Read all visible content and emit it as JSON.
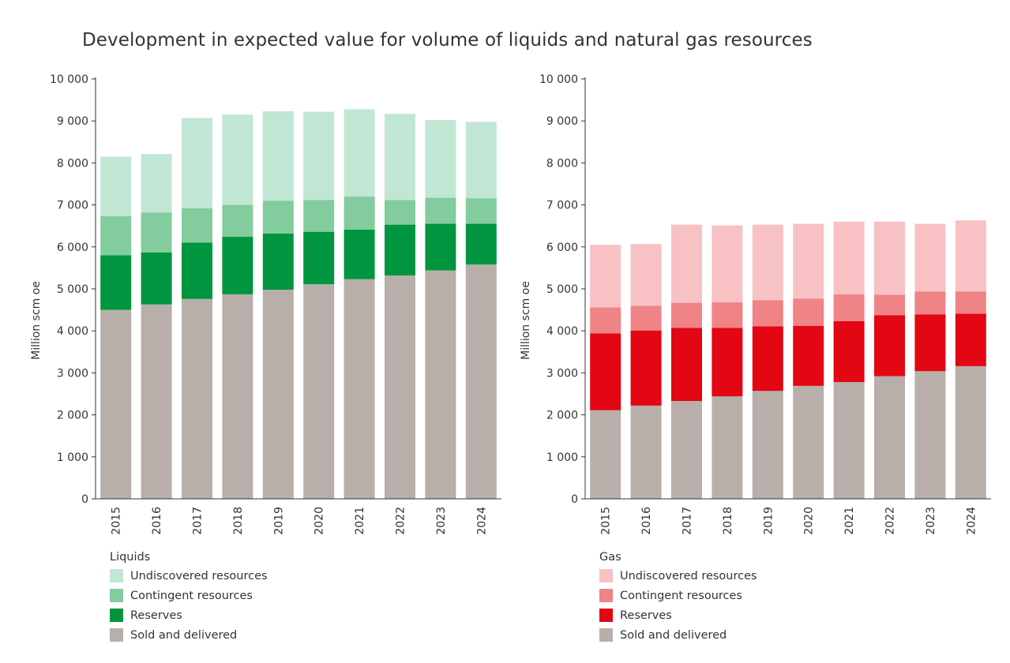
{
  "title": "Development in expected value for volume of liquids and natural gas resources",
  "chart_data": [
    {
      "type": "bar",
      "stacked": true,
      "name": "Liquids",
      "categories": [
        "2015",
        "2016",
        "2017",
        "2018",
        "2019",
        "2020",
        "2021",
        "2022",
        "2023",
        "2024"
      ],
      "ylabel": "Million scm oe",
      "xlabel": "",
      "ylim": [
        0,
        10000
      ],
      "yticks": [
        0,
        1000,
        2000,
        3000,
        4000,
        5000,
        6000,
        7000,
        8000,
        9000,
        10000
      ],
      "ytick_labels": [
        "0",
        "1 000",
        "2 000",
        "3 000",
        "4 000",
        "5 000",
        "6 000",
        "7 000",
        "8 000",
        "9 000",
        "10 000"
      ],
      "grid": false,
      "legend_title": "Liquids",
      "legend_position": "bottom-left",
      "series": [
        {
          "name": "Sold and delivered",
          "color": "#b8afaa",
          "values": [
            4500,
            4630,
            4760,
            4870,
            4980,
            5110,
            5230,
            5320,
            5440,
            5580
          ]
        },
        {
          "name": "Reserves",
          "color": "#00953e",
          "values": [
            1300,
            1240,
            1340,
            1370,
            1340,
            1250,
            1180,
            1210,
            1110,
            970
          ]
        },
        {
          "name": "Contingent resources",
          "color": "#82cc9e",
          "values": [
            930,
            950,
            820,
            760,
            780,
            760,
            790,
            590,
            620,
            610
          ]
        },
        {
          "name": "Undiscovered resources",
          "color": "#c2e6d4",
          "values": [
            1420,
            1390,
            2150,
            2150,
            2130,
            2100,
            2080,
            2050,
            1850,
            1820
          ]
        }
      ]
    },
    {
      "type": "bar",
      "stacked": true,
      "name": "Gas",
      "categories": [
        "2015",
        "2016",
        "2017",
        "2018",
        "2019",
        "2020",
        "2021",
        "2022",
        "2023",
        "2024"
      ],
      "ylabel": "Million scm oe",
      "xlabel": "",
      "ylim": [
        0,
        10000
      ],
      "yticks": [
        0,
        1000,
        2000,
        3000,
        4000,
        5000,
        6000,
        7000,
        8000,
        9000,
        10000
      ],
      "ytick_labels": [
        "0",
        "1 000",
        "2 000",
        "3 000",
        "4 000",
        "5 000",
        "6 000",
        "7 000",
        "8 000",
        "9 000",
        "10 000"
      ],
      "grid": false,
      "legend_title": "Gas",
      "legend_position": "bottom-left",
      "series": [
        {
          "name": "Sold and delivered",
          "color": "#b8afaa",
          "values": [
            2110,
            2220,
            2330,
            2440,
            2570,
            2690,
            2780,
            2920,
            3040,
            3160
          ]
        },
        {
          "name": "Reserves",
          "color": "#e30613",
          "values": [
            1830,
            1790,
            1740,
            1630,
            1540,
            1430,
            1450,
            1450,
            1350,
            1250
          ]
        },
        {
          "name": "Contingent resources",
          "color": "#f08386",
          "values": [
            620,
            590,
            600,
            610,
            620,
            650,
            640,
            490,
            550,
            530
          ]
        },
        {
          "name": "Undiscovered resources",
          "color": "#f8c1c4",
          "values": [
            1490,
            1470,
            1860,
            1830,
            1800,
            1780,
            1730,
            1740,
            1610,
            1690
          ]
        }
      ]
    }
  ]
}
